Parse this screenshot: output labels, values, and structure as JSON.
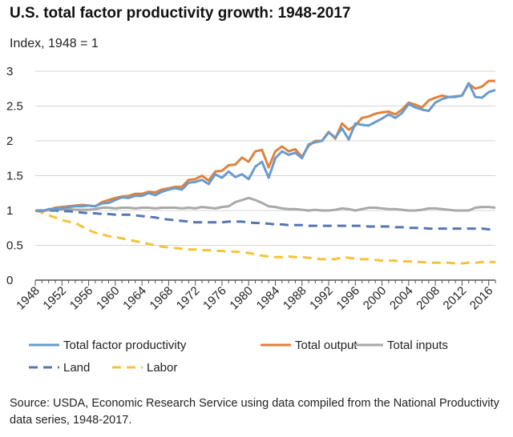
{
  "chart_data": {
    "type": "line",
    "title": "U.S. total factor productivity growth: 1948-2017",
    "ylabel": "Index, 1948 = 1",
    "xlabel": "",
    "ylim": [
      0,
      3
    ],
    "xlim": [
      1948,
      2017
    ],
    "y_ticks": [
      "0",
      "0.5",
      "1",
      "1.5",
      "2",
      "2.5",
      "3"
    ],
    "y_tick_values": [
      0,
      0.5,
      1,
      1.5,
      2,
      2.5,
      3
    ],
    "x_ticks": [
      "1948",
      "1952",
      "1956",
      "1960",
      "1964",
      "1968",
      "1972",
      "1976",
      "1980",
      "1984",
      "1988",
      "1992",
      "1996",
      "2000",
      "2004",
      "2008",
      "2012",
      "2016"
    ],
    "x_tick_values": [
      1948,
      1952,
      1956,
      1960,
      1964,
      1968,
      1972,
      1976,
      1980,
      1984,
      1988,
      1992,
      1996,
      2000,
      2004,
      2008,
      2012,
      2016
    ],
    "grid": "horizontal",
    "x_start": 1948,
    "series": [
      {
        "name": "Total factor productivity",
        "color": "#6a9bcb",
        "dash": "solid",
        "values": [
          1.0,
          0.99,
          1.02,
          1.02,
          1.03,
          1.05,
          1.06,
          1.06,
          1.07,
          1.06,
          1.1,
          1.11,
          1.15,
          1.19,
          1.18,
          1.21,
          1.21,
          1.25,
          1.22,
          1.27,
          1.3,
          1.32,
          1.3,
          1.4,
          1.41,
          1.44,
          1.38,
          1.52,
          1.47,
          1.56,
          1.48,
          1.52,
          1.45,
          1.63,
          1.7,
          1.47,
          1.75,
          1.85,
          1.8,
          1.83,
          1.75,
          1.95,
          1.98,
          2.0,
          2.12,
          2.05,
          2.18,
          2.02,
          2.25,
          2.23,
          2.22,
          2.27,
          2.32,
          2.38,
          2.33,
          2.4,
          2.53,
          2.48,
          2.45,
          2.43,
          2.55,
          2.6,
          2.63,
          2.63,
          2.65,
          2.83,
          2.63,
          2.62,
          2.7,
          2.73
        ]
      },
      {
        "name": "Total output",
        "color": "#e0823e",
        "dash": "solid",
        "values": [
          1.0,
          0.99,
          1.01,
          1.04,
          1.05,
          1.06,
          1.07,
          1.08,
          1.07,
          1.06,
          1.12,
          1.15,
          1.18,
          1.2,
          1.21,
          1.24,
          1.24,
          1.27,
          1.26,
          1.3,
          1.32,
          1.34,
          1.34,
          1.44,
          1.45,
          1.5,
          1.43,
          1.56,
          1.57,
          1.65,
          1.66,
          1.76,
          1.7,
          1.85,
          1.87,
          1.62,
          1.85,
          1.92,
          1.85,
          1.88,
          1.77,
          1.93,
          2.0,
          2.0,
          2.13,
          2.03,
          2.25,
          2.16,
          2.22,
          2.33,
          2.35,
          2.39,
          2.41,
          2.42,
          2.38,
          2.45,
          2.55,
          2.52,
          2.48,
          2.58,
          2.62,
          2.65,
          2.63,
          2.64,
          2.65,
          2.82,
          2.75,
          2.78,
          2.86,
          2.86
        ]
      },
      {
        "name": "Total inputs",
        "color": "#a9a9a9",
        "dash": "solid",
        "values": [
          1.0,
          1.0,
          1.01,
          1.01,
          1.01,
          1.02,
          1.01,
          1.01,
          1.01,
          1.02,
          1.04,
          1.04,
          1.03,
          1.04,
          1.04,
          1.03,
          1.04,
          1.04,
          1.03,
          1.04,
          1.04,
          1.04,
          1.03,
          1.04,
          1.03,
          1.05,
          1.04,
          1.03,
          1.05,
          1.06,
          1.12,
          1.15,
          1.18,
          1.15,
          1.11,
          1.06,
          1.05,
          1.03,
          1.02,
          1.02,
          1.01,
          1.0,
          1.01,
          1.0,
          1.0,
          1.01,
          1.03,
          1.02,
          1.0,
          1.02,
          1.04,
          1.04,
          1.03,
          1.02,
          1.02,
          1.01,
          1.0,
          1.0,
          1.01,
          1.03,
          1.03,
          1.02,
          1.01,
          1.0,
          1.0,
          1.0,
          1.04,
          1.05,
          1.05,
          1.04
        ]
      },
      {
        "name": "Land",
        "color": "#5676b2",
        "dash": "dashed",
        "values": [
          1.0,
          1.0,
          1.0,
          1.0,
          0.99,
          0.99,
          0.98,
          0.97,
          0.96,
          0.96,
          0.95,
          0.95,
          0.94,
          0.94,
          0.94,
          0.93,
          0.92,
          0.91,
          0.9,
          0.88,
          0.87,
          0.86,
          0.85,
          0.84,
          0.83,
          0.83,
          0.83,
          0.83,
          0.83,
          0.84,
          0.84,
          0.84,
          0.83,
          0.82,
          0.82,
          0.81,
          0.8,
          0.8,
          0.79,
          0.79,
          0.79,
          0.78,
          0.78,
          0.78,
          0.78,
          0.78,
          0.78,
          0.78,
          0.78,
          0.78,
          0.77,
          0.77,
          0.77,
          0.77,
          0.76,
          0.76,
          0.75,
          0.75,
          0.75,
          0.74,
          0.74,
          0.74,
          0.74,
          0.74,
          0.74,
          0.74,
          0.74,
          0.74,
          0.73,
          0.73
        ]
      },
      {
        "name": "Labor",
        "color": "#f5c33b",
        "dash": "dashed",
        "values": [
          1.0,
          0.97,
          0.93,
          0.9,
          0.86,
          0.84,
          0.82,
          0.77,
          0.72,
          0.68,
          0.66,
          0.63,
          0.62,
          0.6,
          0.58,
          0.56,
          0.54,
          0.52,
          0.5,
          0.48,
          0.47,
          0.46,
          0.45,
          0.44,
          0.44,
          0.43,
          0.43,
          0.42,
          0.42,
          0.41,
          0.41,
          0.4,
          0.39,
          0.37,
          0.35,
          0.34,
          0.33,
          0.33,
          0.34,
          0.33,
          0.33,
          0.32,
          0.31,
          0.3,
          0.3,
          0.3,
          0.33,
          0.32,
          0.31,
          0.3,
          0.3,
          0.29,
          0.28,
          0.28,
          0.28,
          0.27,
          0.27,
          0.26,
          0.26,
          0.25,
          0.25,
          0.25,
          0.25,
          0.24,
          0.24,
          0.25,
          0.25,
          0.26,
          0.26,
          0.26
        ]
      }
    ],
    "legend": [
      [
        "Total factor productivity",
        "Total output",
        "Total inputs"
      ],
      [
        "Land",
        "Labor"
      ]
    ]
  },
  "source": "Source: USDA, Economic Research Service using data compiled from the National Productivity data series, 1948-2017."
}
